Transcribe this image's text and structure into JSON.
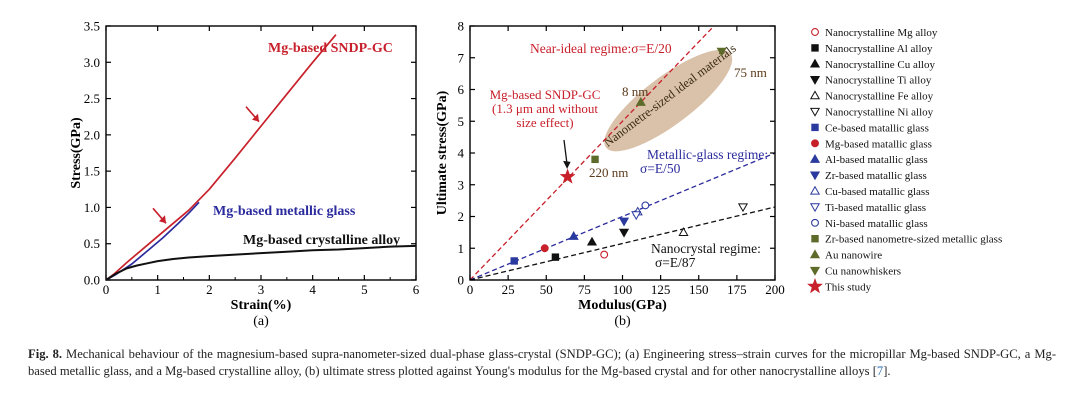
{
  "chart_data": [
    {
      "type": "line",
      "panel_label": "(a)",
      "xlabel": "Strain(%)",
      "ylabel": "Stress(GPa)",
      "xlim": [
        0,
        6
      ],
      "ylim": [
        0,
        3.5
      ],
      "xticks": [
        "0",
        "1",
        "2",
        "3",
        "4",
        "5",
        "6"
      ],
      "yticks": [
        "0.0",
        "0.5",
        "1.0",
        "1.5",
        "2.0",
        "2.5",
        "3.0",
        "3.5"
      ],
      "series": [
        {
          "name": "Mg-based SNDP-GC",
          "color": "#c8202b",
          "x": [
            0,
            0.15,
            0.4,
            0.8,
            1.2,
            1.6,
            2.0,
            2.5,
            3.0,
            3.5,
            4.0,
            4.45
          ],
          "y": [
            0,
            0.08,
            0.24,
            0.48,
            0.72,
            0.96,
            1.25,
            1.68,
            2.12,
            2.56,
            3.0,
            3.38
          ]
        },
        {
          "name": "Mg-based metallic glass",
          "color": "#2b2b9e",
          "x": [
            0,
            0.2,
            0.5,
            0.8,
            1.1,
            1.4,
            1.6,
            1.8
          ],
          "y": [
            0,
            0.08,
            0.22,
            0.4,
            0.58,
            0.78,
            0.92,
            1.07
          ]
        },
        {
          "name": "Mg-based crystalline alloy",
          "color": "#111111",
          "x": [
            0,
            0.2,
            0.4,
            0.6,
            0.8,
            1.0,
            1.3,
            1.6,
            2.0,
            2.5,
            3.0,
            3.5,
            4.0,
            4.5,
            5.0,
            5.5,
            6.0
          ],
          "y": [
            0,
            0.09,
            0.16,
            0.2,
            0.23,
            0.26,
            0.29,
            0.31,
            0.33,
            0.35,
            0.37,
            0.39,
            0.41,
            0.42,
            0.44,
            0.46,
            0.47
          ]
        }
      ],
      "annotations": [
        {
          "text": "Mg-based SNDP-GC",
          "color": "#c8202b"
        },
        {
          "text": "Mg-based metallic glass",
          "color": "#2b2b9e"
        },
        {
          "text": "Mg-based crystalline alloy",
          "color": "#111111"
        }
      ],
      "arrows": [
        {
          "tip_x": 1.2,
          "tip_y": 0.74
        },
        {
          "tip_x": 3.0,
          "tip_y": 2.14
        }
      ]
    },
    {
      "type": "scatter",
      "panel_label": "(b)",
      "xlabel": "Modulus(GPa)",
      "ylabel": "Ultimate stress(GPa)",
      "xlim": [
        0,
        200
      ],
      "ylim": [
        0,
        8
      ],
      "xticks": [
        "0",
        "25",
        "50",
        "75",
        "100",
        "125",
        "150",
        "175",
        "200"
      ],
      "yticks": [
        "0",
        "1",
        "2",
        "3",
        "4",
        "5",
        "6",
        "7",
        "8"
      ],
      "reference_lines": [
        {
          "label": "Near-ideal regime:σ=E/20",
          "slope": 0.05,
          "color": "#c8202b",
          "style": "dashed"
        },
        {
          "label_lines": [
            "Metallic-glass regime:",
            "σ=E/50"
          ],
          "slope": 0.02,
          "color": "#2b2b9e",
          "style": "dashed"
        },
        {
          "label_lines": [
            "Nanocrystal regime:",
            "σ=E/87"
          ],
          "slope": 0.0115,
          "color": "#111111",
          "style": "dashed"
        }
      ],
      "region": {
        "label": "Nanometre-sized ideal materials",
        "color": "#d2b79a"
      },
      "point_annotations": [
        {
          "text": "8 nm",
          "color": "#5a3a1a"
        },
        {
          "text": "75 nm",
          "color": "#5a3a1a"
        },
        {
          "text": "220 nm",
          "color": "#5a3a1a"
        },
        {
          "text_lines": [
            "Mg-based SNDP-GC",
            "(1.3 μm and without",
            "size effect)"
          ],
          "color": "#c8202b"
        }
      ],
      "series": [
        {
          "name": "Nanocrystalline Mg alloy",
          "marker": "circle-open",
          "color": "#c8202b",
          "points": [
            [
              88,
              0.8
            ]
          ]
        },
        {
          "name": "Nanocrystalline Al alloy",
          "marker": "square-filled",
          "color": "#111111",
          "points": [
            [
              56,
              0.72
            ]
          ]
        },
        {
          "name": "Nanocrystalline Cu alloy",
          "marker": "triangle-up-filled",
          "color": "#111111",
          "points": [
            [
              80,
              1.2
            ]
          ]
        },
        {
          "name": "Nanocrystalline Ti alloy",
          "marker": "triangle-down-filled",
          "color": "#111111",
          "points": [
            [
              101,
              1.5
            ]
          ]
        },
        {
          "name": "Nanocrystalline Fe alloy",
          "marker": "triangle-up-open",
          "color": "#111111",
          "points": [
            [
              140,
              1.5
            ]
          ]
        },
        {
          "name": "Nanocrystalline Ni alloy",
          "marker": "triangle-down-open",
          "color": "#111111",
          "points": [
            [
              179,
              2.3
            ]
          ]
        },
        {
          "name": "Ce-based matallic glass",
          "marker": "square-filled",
          "color": "#2b3a9e",
          "points": [
            [
              29,
              0.6
            ]
          ]
        },
        {
          "name": "Mg-based matallic glass",
          "marker": "circle-filled",
          "color": "#c8202b",
          "points": [
            [
              49,
              1.0
            ]
          ]
        },
        {
          "name": "Al-based matallic glass",
          "marker": "triangle-up-filled",
          "color": "#2b3a9e",
          "points": [
            [
              68,
              1.38
            ]
          ]
        },
        {
          "name": "Zr-based matallic glass",
          "marker": "triangle-down-filled",
          "color": "#2b3a9e",
          "points": [
            [
              101,
              1.85
            ]
          ]
        },
        {
          "name": "Cu-based matallic glass",
          "marker": "triangle-up-open",
          "color": "#2b3a9e",
          "points": [
            [
              110,
              2.15
            ]
          ]
        },
        {
          "name": "Ti-based matallic glass",
          "marker": "triangle-down-open",
          "color": "#2b3a9e",
          "points": [
            [
              109,
              2.05
            ]
          ]
        },
        {
          "name": "Ni-based matallic glass",
          "marker": "circle-open",
          "color": "#2b3a9e",
          "points": [
            [
              115,
              2.35
            ]
          ]
        },
        {
          "name": "Zr-based nanometre-sized metallic glass",
          "marker": "square-filled",
          "color": "#5d6b2a",
          "points": [
            [
              82,
              3.8
            ]
          ]
        },
        {
          "name": "Au nanowire",
          "marker": "triangle-up-filled",
          "color": "#5d6b2a",
          "points": [
            [
              112,
              5.6
            ]
          ]
        },
        {
          "name": "Cu nanowhiskers",
          "marker": "triangle-down-filled",
          "color": "#5d6b2a",
          "points": [
            [
              165,
              7.2
            ]
          ]
        },
        {
          "name": "This study",
          "marker": "star",
          "color": "#c8202b",
          "points": [
            [
              64,
              3.25
            ]
          ]
        }
      ]
    }
  ],
  "caption": {
    "label": "Fig. 8.",
    "text": " Mechanical behaviour of the magnesium-based supra-nanometer-sized dual-phase glass-crystal (SNDP-GC); (a) Engineering stress–strain curves for the micropillar Mg-based SNDP-GC, a Mg-based metallic glass, and a Mg-based crystalline alloy, (b) ultimate stress plotted against Young's modulus for the Mg-based crystal and for other nanocrystalline alloys [",
    "ref": "7",
    "end": "]."
  }
}
